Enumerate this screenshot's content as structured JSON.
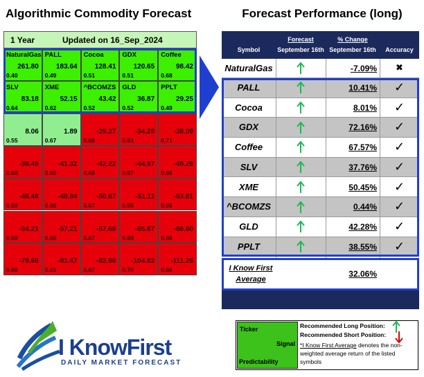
{
  "left": {
    "title": "Algorithmic Commodity Forecast",
    "header": {
      "period": "1 Year",
      "updated": "Updated on 16_Sep_2024"
    },
    "rows": [
      [
        {
          "ticker": "NaturalGas",
          "signal": "261.80",
          "predictability": "0.40"
        },
        {
          "ticker": "PALL",
          "signal": "183.64",
          "predictability": "0.49"
        },
        {
          "ticker": "Cocoa",
          "signal": "128.41",
          "predictability": "0.51"
        },
        {
          "ticker": "GDX",
          "signal": "120.65",
          "predictability": "0.51"
        },
        {
          "ticker": "Coffee",
          "signal": "98.42",
          "predictability": "0.68"
        }
      ],
      [
        {
          "ticker": "SLV",
          "signal": "83.18",
          "predictability": "0.64"
        },
        {
          "ticker": "XME",
          "signal": "52.15",
          "predictability": "0.62"
        },
        {
          "ticker": "^BCOMZS",
          "signal": "43.42",
          "predictability": "0.52"
        },
        {
          "ticker": "GLD",
          "signal": "36.87",
          "predictability": "0.52"
        },
        {
          "ticker": "PPLT",
          "signal": "29.25",
          "predictability": "0.49"
        }
      ],
      [
        {
          "signal": "8.06",
          "predictability": "0.55"
        },
        {
          "signal": "1.89",
          "predictability": "0.67"
        },
        {
          "signal": "-29.27",
          "predictability": "0.68"
        },
        {
          "signal": "-34.28",
          "predictability": "0.63"
        },
        {
          "signal": "-38.09",
          "predictability": "0.71"
        }
      ],
      [
        {
          "signal": "-38.49",
          "predictability": "0.68"
        },
        {
          "signal": "-41.32",
          "predictability": "0.65"
        },
        {
          "signal": "-42.22",
          "predictability": "0.68"
        },
        {
          "signal": "-44.97",
          "predictability": "0.67"
        },
        {
          "signal": "-48.26",
          "predictability": "0.66"
        }
      ],
      [
        {
          "signal": "-48.48",
          "predictability": "0.59"
        },
        {
          "signal": "-49.84",
          "predictability": "0.68"
        },
        {
          "signal": "-50.67",
          "predictability": "0.67"
        },
        {
          "signal": "-51.11",
          "predictability": "0.66"
        },
        {
          "signal": "-53.81",
          "predictability": "0.55"
        }
      ],
      [
        {
          "signal": "-54.21",
          "predictability": "0.69"
        },
        {
          "signal": "-57.21",
          "predictability": "0.68"
        },
        {
          "signal": "-57.68",
          "predictability": "0.67"
        },
        {
          "signal": "-65.87",
          "predictability": "0.68"
        },
        {
          "signal": "-66.60",
          "predictability": "0.66"
        }
      ],
      [
        {
          "signal": "-78.66",
          "predictability": "0.66"
        },
        {
          "signal": "-81.47",
          "predictability": "0.61"
        },
        {
          "signal": "-82.96",
          "predictability": "0.67"
        },
        {
          "signal": "-104.82",
          "predictability": "0.70"
        },
        {
          "signal": "-111.26",
          "predictability": "0.66"
        }
      ]
    ]
  },
  "right": {
    "title": "Forecast Performance (long)",
    "columns": {
      "symbol": "Symbol",
      "forecast": {
        "label": "Forecast",
        "sub": "September 16th"
      },
      "change": {
        "label": "% Change",
        "sub": "September 16th"
      },
      "accuracy": "Accuracy"
    },
    "rows": [
      {
        "symbol": "NaturalGas",
        "change": "-7.09%",
        "accuracy": "✖"
      },
      {
        "symbol": "PALL",
        "change": "10.41%",
        "accuracy": "✓"
      },
      {
        "symbol": "Cocoa",
        "change": "8.01%",
        "accuracy": "✓"
      },
      {
        "symbol": "GDX",
        "change": "72.16%",
        "accuracy": "✓"
      },
      {
        "symbol": "Coffee",
        "change": "67.57%",
        "accuracy": "✓"
      },
      {
        "symbol": "SLV",
        "change": "37.76%",
        "accuracy": "✓"
      },
      {
        "symbol": "XME",
        "change": "50.45%",
        "accuracy": "✓"
      },
      {
        "symbol": "^BCOMZS",
        "change": "0.44%",
        "accuracy": "✓"
      },
      {
        "symbol": "GLD",
        "change": "42.28%",
        "accuracy": "✓"
      },
      {
        "symbol": "PPLT",
        "change": "38.55%",
        "accuracy": "✓"
      }
    ],
    "average": {
      "label_lines": [
        "I Know First",
        "Average"
      ],
      "change": "32.06%"
    }
  },
  "legend": {
    "ticker": "Ticker",
    "signal": "Signal",
    "predictability": "Predictability",
    "long": "Recommended Long Position:",
    "short": "Recommended Short Position:",
    "note_link": "*I Know First Average",
    "note_rest": " denotes the non-weighted average return of the listed symbols"
  },
  "logo": {
    "name": "I KnowFirst",
    "tagline": "DAILY MARKET FORECAST"
  }
}
